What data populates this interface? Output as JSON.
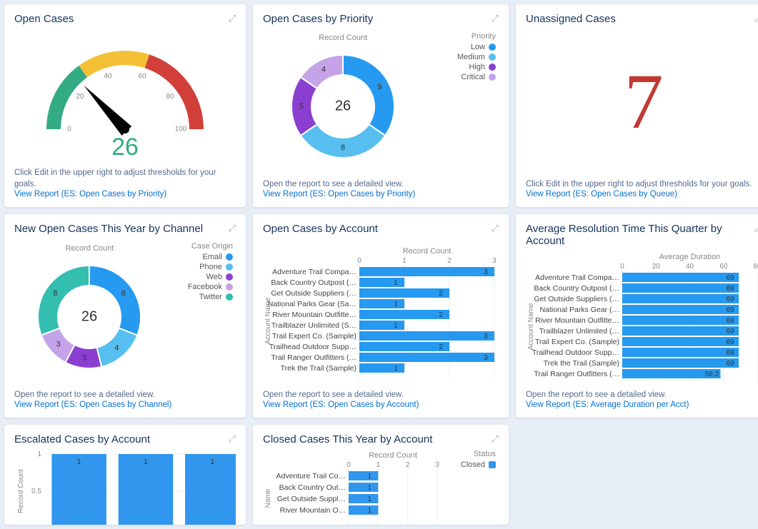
{
  "colors": {
    "bg": "#e8eef5",
    "card_bg": "#ffffff",
    "title": "#16325c",
    "link": "#0070d2",
    "footer_text": "#54698d",
    "axis_text": "#888888",
    "bar_fill": "#2699f0",
    "bar_fill_alt": "#3196ed",
    "grid_line": "#dcdcdc",
    "red": "#c23934",
    "teal": "#33ab84"
  },
  "open_cases": {
    "title": "Open Cases",
    "value": 26,
    "gauge": {
      "min": 0,
      "max": 100,
      "tick_step": 20,
      "segments": [
        {
          "from": 0,
          "to": 30,
          "color": "#33ab84"
        },
        {
          "from": 30,
          "to": 60,
          "color": "#f3c035"
        },
        {
          "from": 60,
          "to": 100,
          "color": "#d23f39"
        }
      ],
      "needle_color": "#000000",
      "text_color": "#33ab84"
    },
    "edit_hint": "Click Edit in the upper right to adjust thresholds for your goals.",
    "report_link": "View Report (ES: Open Cases by Priority)"
  },
  "open_cases_by_priority": {
    "title": "Open Cases by Priority",
    "chart_title": "Record Count",
    "center_value": 26,
    "legend_title": "Priority",
    "series": [
      {
        "label": "Low",
        "value": 9,
        "color": "#2699f0"
      },
      {
        "label": "Medium",
        "value": 8,
        "color": "#57bef0"
      },
      {
        "label": "High",
        "value": 5,
        "color": "#8a3fd1"
      },
      {
        "label": "Critical",
        "value": 4,
        "color": "#c4a3e8"
      }
    ],
    "hint": "Open the report to see a detailed view.",
    "report_link": "View Report (ES: Open Cases by Priority)"
  },
  "unassigned_cases": {
    "title": "Unassigned Cases",
    "value": 7,
    "value_color": "#c23934",
    "edit_hint": "Click Edit in the upper right to adjust thresholds for your goals.",
    "report_link": "View Report (ES: Open Cases by Queue)"
  },
  "open_cases_by_channel": {
    "title": "New Open Cases This Year by Channel",
    "chart_title": "Record Count",
    "center_value": 26,
    "legend_title": "Case Origin",
    "series": [
      {
        "label": "Email",
        "value": 8,
        "color": "#2699f0"
      },
      {
        "label": "Phone",
        "value": 4,
        "color": "#57bef0"
      },
      {
        "label": "Web",
        "value": 3,
        "color": "#8a3fd1"
      },
      {
        "label": "Facebook",
        "value": 3,
        "color": "#c4a3e8"
      },
      {
        "label": "Twitter",
        "value": 8,
        "color": "#33beb0"
      }
    ],
    "hint": "Open the report to see a detailed view.",
    "report_link": "View Report (ES: Open Cases by Channel)"
  },
  "open_cases_by_account": {
    "title": "Open Cases by Account",
    "axis_title": "Record Count",
    "vaxis_title": "Account Name",
    "xmax": 3,
    "xtick_step": 1,
    "bar_color": "#2699f0",
    "bars": [
      {
        "label": "Adventure Trail Compa…",
        "value": 3
      },
      {
        "label": "Back Country Outpost (…",
        "value": 1
      },
      {
        "label": "Get Outside Suppliers (…",
        "value": 2
      },
      {
        "label": "National Parks Gear (Sa…",
        "value": 1
      },
      {
        "label": "River Mountain Outfitte…",
        "value": 2
      },
      {
        "label": "Trailblazer Unlimited (S…",
        "value": 1
      },
      {
        "label": "Trail Expert Co. (Sample)",
        "value": 3
      },
      {
        "label": "Trailhead Outdoor Supp…",
        "value": 2
      },
      {
        "label": "Trail Ranger Outfitters (…",
        "value": 3
      },
      {
        "label": "Trek the Trail (Sample)",
        "value": 1
      }
    ],
    "hint": "Open the report to see a detailed view.",
    "report_link": "View Report (ES: Open Cases by Account)"
  },
  "avg_resolution": {
    "title": "Average Resolution Time This Quarter by Account",
    "axis_title": "Average Duration",
    "vaxis_title": "Account Name",
    "xmax": 80,
    "xtick_step": 20,
    "bar_color": "#2699f0",
    "bars": [
      {
        "label": "Adventure Trail Compa…",
        "value": 69
      },
      {
        "label": "Back Country Outpost (…",
        "value": 69
      },
      {
        "label": "Get Outside Suppliers (…",
        "value": 69
      },
      {
        "label": "National Parks Gear (…",
        "value": 69
      },
      {
        "label": "River Mountain Outfitte…",
        "value": 69
      },
      {
        "label": "Trailblazer Unlimited (…",
        "value": 69
      },
      {
        "label": "Trail Expert Co. (Sample)",
        "value": 69
      },
      {
        "label": "Trailhead Outdoor Supp…",
        "value": 69
      },
      {
        "label": "Trek the Trail (Sample)",
        "value": 69
      },
      {
        "label": "Trail Ranger Outfitters (…",
        "value": 58.2
      }
    ],
    "hint": "Open the report to see a detailed view.",
    "report_link": "View Report (ES: Average Duration per Acct)"
  },
  "escalated_by_account": {
    "title": "Escalated Cases by Account",
    "vaxis_title": "Record Count",
    "ymax": 1,
    "ytick_step": 0.5,
    "bar_color": "#3196ed",
    "bars": [
      {
        "label": "",
        "value": 1
      },
      {
        "label": "",
        "value": 1
      },
      {
        "label": "",
        "value": 1
      }
    ]
  },
  "closed_cases": {
    "title": "Closed Cases This Year by Account",
    "axis_title": "Record Count",
    "vaxis_title": "Name",
    "legend_title": "Status",
    "legend_items": [
      {
        "label": "Closed",
        "color": "#3196ed"
      }
    ],
    "xmax": 3,
    "xtick_step": 1,
    "bar_color": "#3196ed",
    "bars": [
      {
        "label": "Adventure Trail Co…",
        "value": 1
      },
      {
        "label": "Back Country Out…",
        "value": 1
      },
      {
        "label": "Get Outside Suppl…",
        "value": 1
      },
      {
        "label": "River Mountain O…",
        "value": 1
      }
    ]
  }
}
